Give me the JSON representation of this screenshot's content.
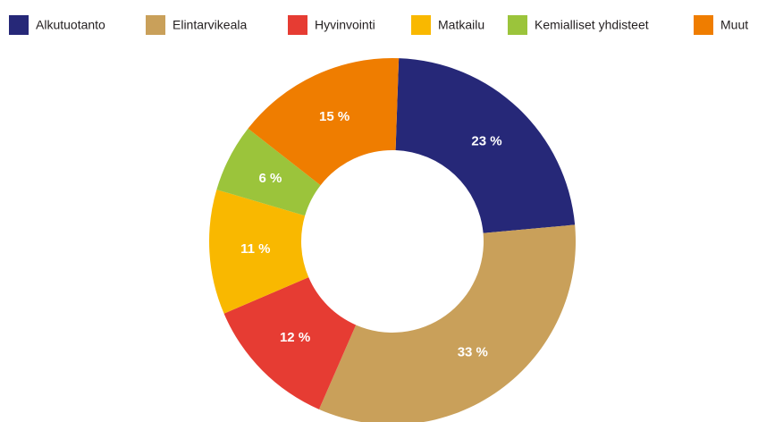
{
  "chart_data": {
    "type": "donut",
    "categories": [
      "Alkutuotanto",
      "Elintarvikeala",
      "Hyvinvointi",
      "Matkailu",
      "Kemialliset yhdisteet",
      "Muut"
    ],
    "values": [
      23,
      33,
      12,
      11,
      6,
      15
    ],
    "value_labels": [
      "23 %",
      "33 %",
      "12 %",
      "11 %",
      "6 %",
      "15 %"
    ],
    "colors": [
      "#262878",
      "#c9a05a",
      "#e63c33",
      "#f9b800",
      "#9bc43b",
      "#ef7d00"
    ],
    "legend": "top"
  }
}
